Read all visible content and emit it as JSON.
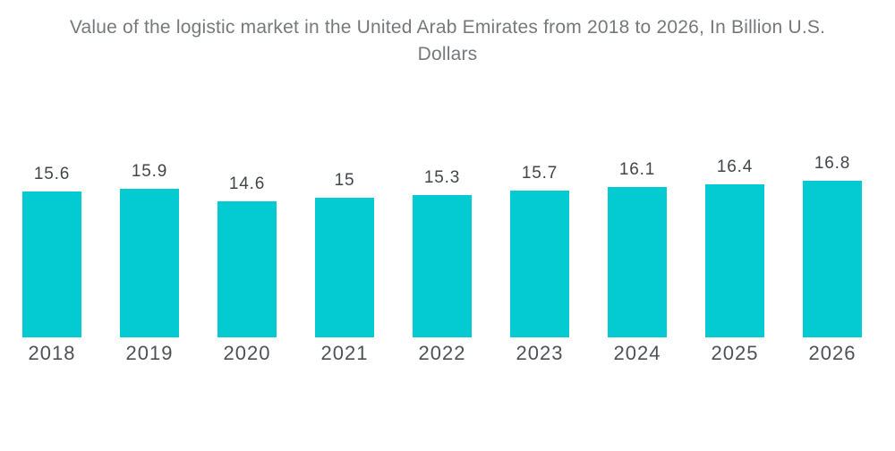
{
  "title": {
    "text": "Value of the logistic market in the United Arab Emirates from 2018 to 2026, In Billion U.S. Dollars",
    "lines": [
      "Value of the logistic market in the United Arab Emirates from 2018 to 2026, In Billion U.S.",
      "Dollars"
    ]
  },
  "colors": {
    "background": "#ffffff",
    "bar": "#03cbd1",
    "title_text": "#76797c",
    "value_label": "#42464a",
    "year_label": "#4e5256"
  },
  "chart_data": {
    "type": "bar",
    "title": "Value of the logistic market in the United Arab Emirates from 2018 to 2026, In Billion U.S. Dollars",
    "categories": [
      "2018",
      "2019",
      "2020",
      "2021",
      "2022",
      "2023",
      "2024",
      "2025",
      "2026"
    ],
    "values": [
      15.6,
      15.9,
      14.6,
      15,
      15.3,
      15.7,
      16.1,
      16.4,
      16.8
    ],
    "xlabel": "",
    "ylabel": "",
    "ylim": [
      0,
      16.8
    ],
    "grid": false,
    "legend": false,
    "value_labels_shown": true,
    "bar_color": "#03cbd1"
  }
}
